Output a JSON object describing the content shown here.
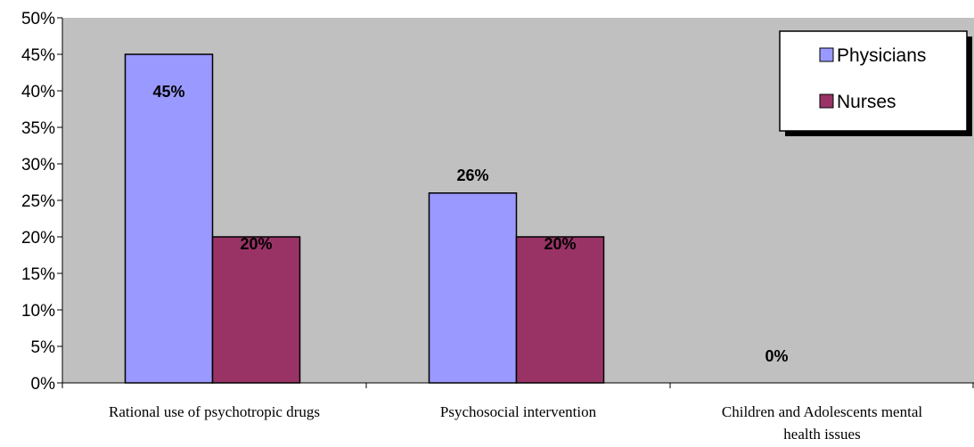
{
  "chart_data": {
    "type": "bar",
    "categories": [
      [
        "Rational use of psychotropic drugs"
      ],
      [
        "Psychosocial intervention"
      ],
      [
        "Children and Adolescents mental",
        "health issues"
      ]
    ],
    "series": [
      {
        "name": "Physicians",
        "values": [
          45,
          26,
          0
        ],
        "labels": [
          "45%",
          "26%",
          "0%"
        ],
        "color": "#9999ff"
      },
      {
        "name": "Nurses",
        "values": [
          20,
          20,
          null
        ],
        "labels": [
          "20%",
          "20%",
          null
        ],
        "color": "#993366"
      }
    ],
    "ylim": [
      0,
      50
    ],
    "yticks": [
      "0%",
      "5%",
      "10%",
      "15%",
      "20%",
      "25%",
      "30%",
      "35%",
      "40%",
      "45%",
      "50%"
    ],
    "plot_background": "#c0c0c0",
    "grid": false,
    "legend_position": "top-right"
  }
}
